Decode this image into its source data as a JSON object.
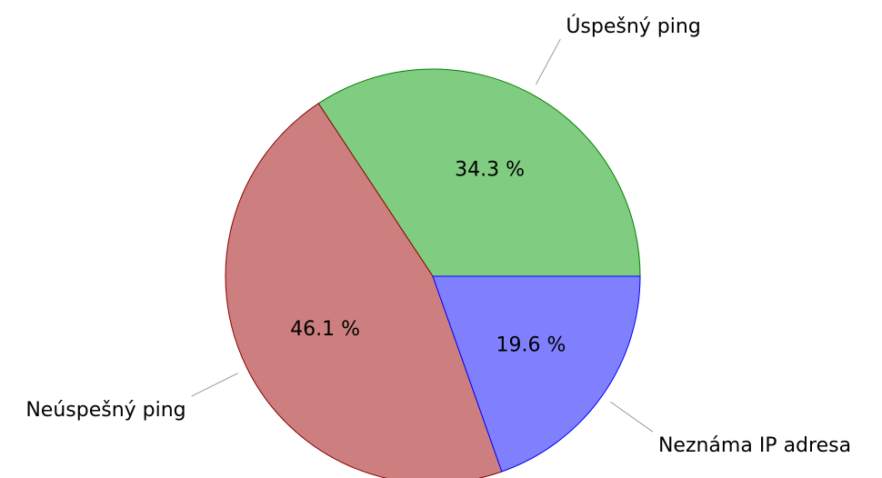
{
  "chart_data": {
    "type": "pie",
    "categories": [
      "Úspešný ping",
      "Neúspešný ping",
      "Neznáma IP adresa"
    ],
    "values": [
      34.3,
      46.1,
      19.6
    ],
    "value_labels": [
      "34.3 %",
      "46.1 %",
      "19.6 %"
    ],
    "colors": [
      "#80cc80",
      "#cd7f7f",
      "#8080ff"
    ],
    "edge_colors": [
      "#008000",
      "#8b0000",
      "#0000ff"
    ]
  }
}
